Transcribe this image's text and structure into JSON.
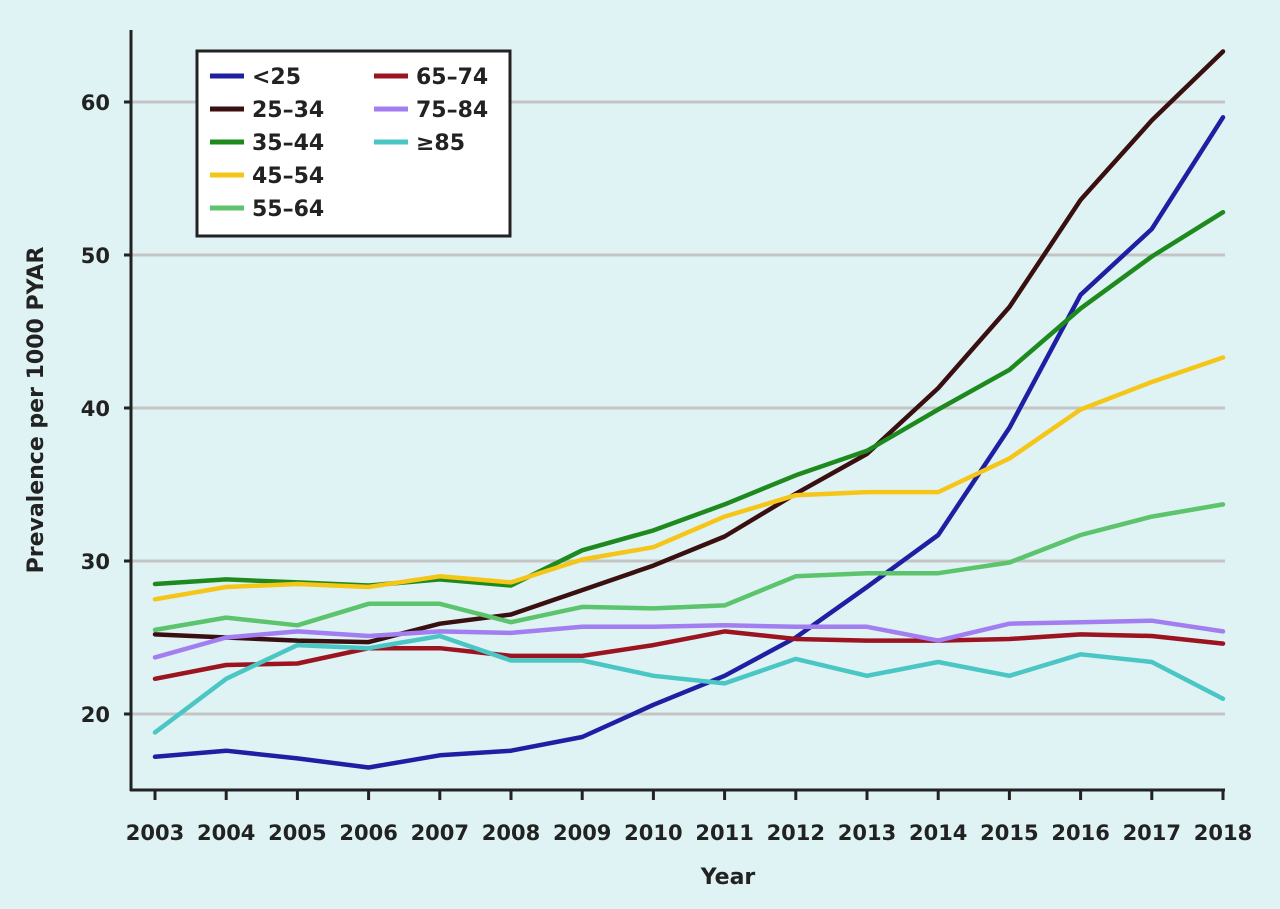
{
  "chart_data": {
    "type": "line",
    "title": "",
    "xlabel": "Year",
    "ylabel": "Prevalence per 1000 PYAR",
    "x": [
      2003,
      2004,
      2005,
      2006,
      2007,
      2008,
      2009,
      2010,
      2011,
      2012,
      2013,
      2014,
      2015,
      2016,
      2017,
      2018
    ],
    "ylim": [
      15.3,
      65
    ],
    "yticks": [
      20,
      30,
      40,
      50,
      60
    ],
    "grid": "horizontal",
    "legend_position": "top-left",
    "series": [
      {
        "name": "<25",
        "color": "#1f1fa3",
        "values": [
          17.2,
          17.6,
          17.1,
          16.5,
          17.3,
          17.6,
          18.5,
          20.6,
          22.5,
          25.0,
          28.3,
          31.7,
          38.7,
          47.4,
          51.7,
          59.0
        ]
      },
      {
        "name": "25–34",
        "color": "#3a0f0f",
        "values": [
          25.2,
          25.0,
          24.8,
          24.7,
          25.9,
          26.5,
          28.1,
          29.7,
          31.6,
          34.4,
          37.0,
          41.3,
          46.6,
          53.6,
          58.8,
          63.3
        ]
      },
      {
        "name": "35–44",
        "color": "#1e8a1e",
        "values": [
          28.5,
          28.8,
          28.6,
          28.4,
          28.8,
          28.4,
          30.7,
          32.0,
          33.7,
          35.6,
          37.2,
          39.9,
          42.5,
          46.5,
          49.9,
          52.8
        ]
      },
      {
        "name": "45–54",
        "color": "#f5c518",
        "values": [
          27.5,
          28.3,
          28.5,
          28.3,
          29.0,
          28.6,
          30.1,
          30.9,
          32.9,
          34.3,
          34.5,
          34.5,
          36.7,
          39.9,
          41.7,
          43.3
        ]
      },
      {
        "name": "55–64",
        "color": "#5cc46c",
        "values": [
          25.5,
          26.3,
          25.8,
          27.2,
          27.2,
          26.0,
          27.0,
          26.9,
          27.1,
          29.0,
          29.2,
          29.2,
          29.9,
          31.7,
          32.9,
          33.7
        ]
      },
      {
        "name": "65–74",
        "color": "#9b1420",
        "values": [
          22.3,
          23.2,
          23.3,
          24.3,
          24.3,
          23.8,
          23.8,
          24.5,
          25.4,
          24.9,
          24.8,
          24.8,
          24.9,
          25.2,
          25.1,
          24.6
        ]
      },
      {
        "name": "75–84",
        "color": "#a37ef0",
        "values": [
          23.7,
          25.0,
          25.4,
          25.1,
          25.4,
          25.3,
          25.7,
          25.7,
          25.8,
          25.7,
          25.7,
          24.8,
          25.9,
          26.0,
          26.1,
          25.4
        ]
      },
      {
        "name": "≥85",
        "color": "#4ac6c4",
        "values": [
          18.8,
          22.3,
          24.5,
          24.3,
          25.1,
          23.5,
          23.5,
          22.5,
          22.0,
          23.6,
          22.5,
          23.4,
          22.5,
          23.9,
          23.4,
          21.0
        ]
      }
    ]
  }
}
